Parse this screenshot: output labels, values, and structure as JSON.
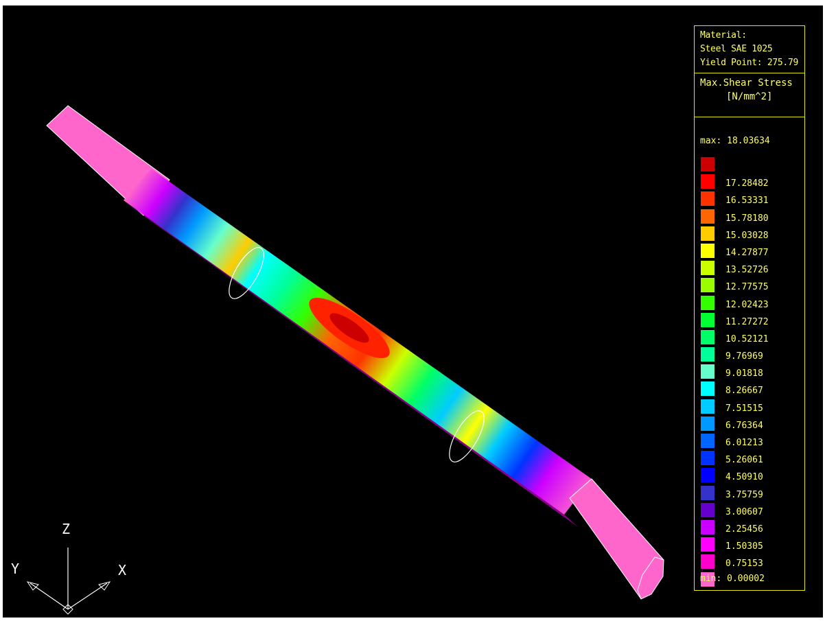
{
  "material": {
    "label": "Material:",
    "name": "Steel SAE 1025",
    "yield_point": "Yield Point: 275.79"
  },
  "result": {
    "title": "Max.Shear Stress",
    "unit": "[N/mm^2]"
  },
  "max_label": "max: 18.03634",
  "min_label": "min:  0.00002",
  "colormap": [
    {
      "value": "",
      "color": "#cc0000"
    },
    {
      "value": "17.28482",
      "color": "#ff0000"
    },
    {
      "value": "16.53331",
      "color": "#ff3300"
    },
    {
      "value": "15.78180",
      "color": "#ff6600"
    },
    {
      "value": "15.03028",
      "color": "#ffcc00"
    },
    {
      "value": "14.27877",
      "color": "#ffff00"
    },
    {
      "value": "13.52726",
      "color": "#ccff00"
    },
    {
      "value": "12.77575",
      "color": "#99ff00"
    },
    {
      "value": "12.02423",
      "color": "#33ff00"
    },
    {
      "value": "11.27272",
      "color": "#00ff33"
    },
    {
      "value": "10.52121",
      "color": "#00ff66"
    },
    {
      "value": "9.76969",
      "color": "#00ff99"
    },
    {
      "value": "9.01818",
      "color": "#66ffcc"
    },
    {
      "value": "8.26667",
      "color": "#00ffff"
    },
    {
      "value": "7.51515",
      "color": "#00ccff"
    },
    {
      "value": "6.76364",
      "color": "#0099ff"
    },
    {
      "value": "6.01213",
      "color": "#0066ff"
    },
    {
      "value": "5.26061",
      "color": "#0033ff"
    },
    {
      "value": "4.50910",
      "color": "#0000ff"
    },
    {
      "value": "3.75759",
      "color": "#3333cc"
    },
    {
      "value": "3.00607",
      "color": "#6600cc"
    },
    {
      "value": "2.25456",
      "color": "#cc00ff"
    },
    {
      "value": "1.50305",
      "color": "#ff00ff"
    },
    {
      "value": "0.75153",
      "color": "#ff00cc"
    },
    {
      "value": "",
      "color": "#ff66cc"
    }
  ],
  "axes": {
    "z": "Z",
    "y": "Y",
    "x": "X"
  },
  "colors": {
    "background": "#000000",
    "legend_text": "#ffff66",
    "legend_border": "#e6e600",
    "end_cap": "#ff66cc"
  }
}
